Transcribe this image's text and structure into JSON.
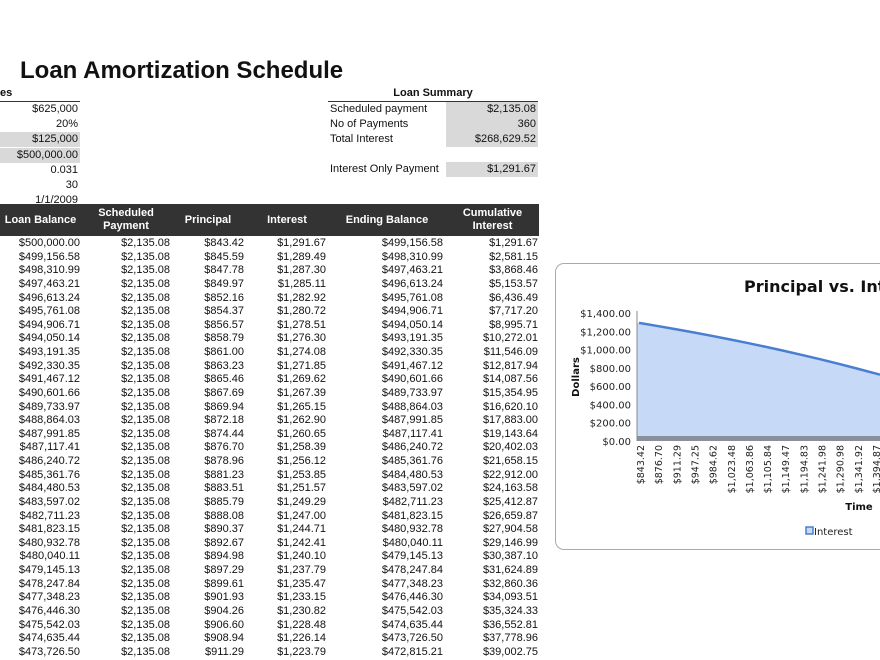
{
  "title": "Loan Amortization Schedule",
  "inputs": {
    "header": "es",
    "values": [
      {
        "value": "$625,000",
        "shaded": false
      },
      {
        "value": "20%",
        "shaded": false
      },
      {
        "value": "$125,000",
        "shaded": true
      },
      {
        "value": "$500,000.00",
        "shaded": true
      },
      {
        "value": "0.031",
        "shaded": false
      },
      {
        "value": "30",
        "shaded": false
      },
      {
        "value": "1/1/2009",
        "shaded": false
      }
    ]
  },
  "summary": {
    "header": "Loan Summary",
    "items": [
      {
        "label": "Scheduled payment",
        "value": "$2,135.08"
      },
      {
        "label": "No of Payments",
        "value": "360"
      },
      {
        "label": "Total Interest",
        "value": "$268,629.52"
      },
      {
        "label": "Interest Only Payment",
        "value": "$1,291.67"
      }
    ]
  },
  "table": {
    "columns": [
      "Loan Balance",
      "Scheduled Payment",
      "Principal",
      "Interest",
      "Ending Balance",
      "Cumulative Interest"
    ],
    "rows": [
      [
        "$500,000.00",
        "$2,135.08",
        "$843.42",
        "$1,291.67",
        "$499,156.58",
        "$1,291.67"
      ],
      [
        "$499,156.58",
        "$2,135.08",
        "$845.59",
        "$1,289.49",
        "$498,310.99",
        "$2,581.15"
      ],
      [
        "$498,310.99",
        "$2,135.08",
        "$847.78",
        "$1,287.30",
        "$497,463.21",
        "$3,868.46"
      ],
      [
        "$497,463.21",
        "$2,135.08",
        "$849.97",
        "$1,285.11",
        "$496,613.24",
        "$5,153.57"
      ],
      [
        "$496,613.24",
        "$2,135.08",
        "$852.16",
        "$1,282.92",
        "$495,761.08",
        "$6,436.49"
      ],
      [
        "$495,761.08",
        "$2,135.08",
        "$854.37",
        "$1,280.72",
        "$494,906.71",
        "$7,717.20"
      ],
      [
        "$494,906.71",
        "$2,135.08",
        "$856.57",
        "$1,278.51",
        "$494,050.14",
        "$8,995.71"
      ],
      [
        "$494,050.14",
        "$2,135.08",
        "$858.79",
        "$1,276.30",
        "$493,191.35",
        "$10,272.01"
      ],
      [
        "$493,191.35",
        "$2,135.08",
        "$861.00",
        "$1,274.08",
        "$492,330.35",
        "$11,546.09"
      ],
      [
        "$492,330.35",
        "$2,135.08",
        "$863.23",
        "$1,271.85",
        "$491,467.12",
        "$12,817.94"
      ],
      [
        "$491,467.12",
        "$2,135.08",
        "$865.46",
        "$1,269.62",
        "$490,601.66",
        "$14,087.56"
      ],
      [
        "$490,601.66",
        "$2,135.08",
        "$867.69",
        "$1,267.39",
        "$489,733.97",
        "$15,354.95"
      ],
      [
        "$489,733.97",
        "$2,135.08",
        "$869.94",
        "$1,265.15",
        "$488,864.03",
        "$16,620.10"
      ],
      [
        "$488,864.03",
        "$2,135.08",
        "$872.18",
        "$1,262.90",
        "$487,991.85",
        "$17,883.00"
      ],
      [
        "$487,991.85",
        "$2,135.08",
        "$874.44",
        "$1,260.65",
        "$487,117.41",
        "$19,143.64"
      ],
      [
        "$487,117.41",
        "$2,135.08",
        "$876.70",
        "$1,258.39",
        "$486,240.72",
        "$20,402.03"
      ],
      [
        "$486,240.72",
        "$2,135.08",
        "$878.96",
        "$1,256.12",
        "$485,361.76",
        "$21,658.15"
      ],
      [
        "$485,361.76",
        "$2,135.08",
        "$881.23",
        "$1,253.85",
        "$484,480.53",
        "$22,912.00"
      ],
      [
        "$484,480.53",
        "$2,135.08",
        "$883.51",
        "$1,251.57",
        "$483,597.02",
        "$24,163.58"
      ],
      [
        "$483,597.02",
        "$2,135.08",
        "$885.79",
        "$1,249.29",
        "$482,711.23",
        "$25,412.87"
      ],
      [
        "$482,711.23",
        "$2,135.08",
        "$888.08",
        "$1,247.00",
        "$481,823.15",
        "$26,659.87"
      ],
      [
        "$481,823.15",
        "$2,135.08",
        "$890.37",
        "$1,244.71",
        "$480,932.78",
        "$27,904.58"
      ],
      [
        "$480,932.78",
        "$2,135.08",
        "$892.67",
        "$1,242.41",
        "$480,040.11",
        "$29,146.99"
      ],
      [
        "$480,040.11",
        "$2,135.08",
        "$894.98",
        "$1,240.10",
        "$479,145.13",
        "$30,387.10"
      ],
      [
        "$479,145.13",
        "$2,135.08",
        "$897.29",
        "$1,237.79",
        "$478,247.84",
        "$31,624.89"
      ],
      [
        "$478,247.84",
        "$2,135.08",
        "$899.61",
        "$1,235.47",
        "$477,348.23",
        "$32,860.36"
      ],
      [
        "$477,348.23",
        "$2,135.08",
        "$901.93",
        "$1,233.15",
        "$476,446.30",
        "$34,093.51"
      ],
      [
        "$476,446.30",
        "$2,135.08",
        "$904.26",
        "$1,230.82",
        "$475,542.03",
        "$35,324.33"
      ],
      [
        "$475,542.03",
        "$2,135.08",
        "$906.60",
        "$1,228.48",
        "$474,635.44",
        "$36,552.81"
      ],
      [
        "$474,635.44",
        "$2,135.08",
        "$908.94",
        "$1,226.14",
        "$473,726.50",
        "$37,778.96"
      ],
      [
        "$473,726.50",
        "$2,135.08",
        "$911.29",
        "$1,223.79",
        "$472,815.21",
        "$39,002.75"
      ]
    ]
  },
  "chart_data": {
    "type": "area",
    "title": "Principal vs. Inter",
    "xlabel": "Time",
    "ylabel": "Dollars",
    "ylim": [
      0,
      1400
    ],
    "yticks": [
      "$0.00",
      "$200.00",
      "$400.00",
      "$600.00",
      "$800.00",
      "$1,000.00",
      "$1,200.00",
      "$1,400.00"
    ],
    "categories": [
      "$843.42",
      "$876.70",
      "$911.29",
      "$947.25",
      "$984.62",
      "$1,023.48",
      "$1,063.86",
      "$1,105.84",
      "$1,149.47",
      "$1,194.83",
      "$1,241.98",
      "$1,290.98",
      "$1,341.92",
      "$1,394.87"
    ],
    "series": [
      {
        "name": "Interest",
        "values": [
          1291.67,
          1258.39,
          1223.79,
          1187.83,
          1150.46,
          1111.6,
          1071.22,
          1029.24,
          985.61,
          940.25,
          893.1,
          844.1,
          793.16,
          740.21
        ],
        "color": "#c6d9f7",
        "line_color": "#4a7ed0"
      }
    ],
    "legend": "bottom",
    "grid": false
  }
}
